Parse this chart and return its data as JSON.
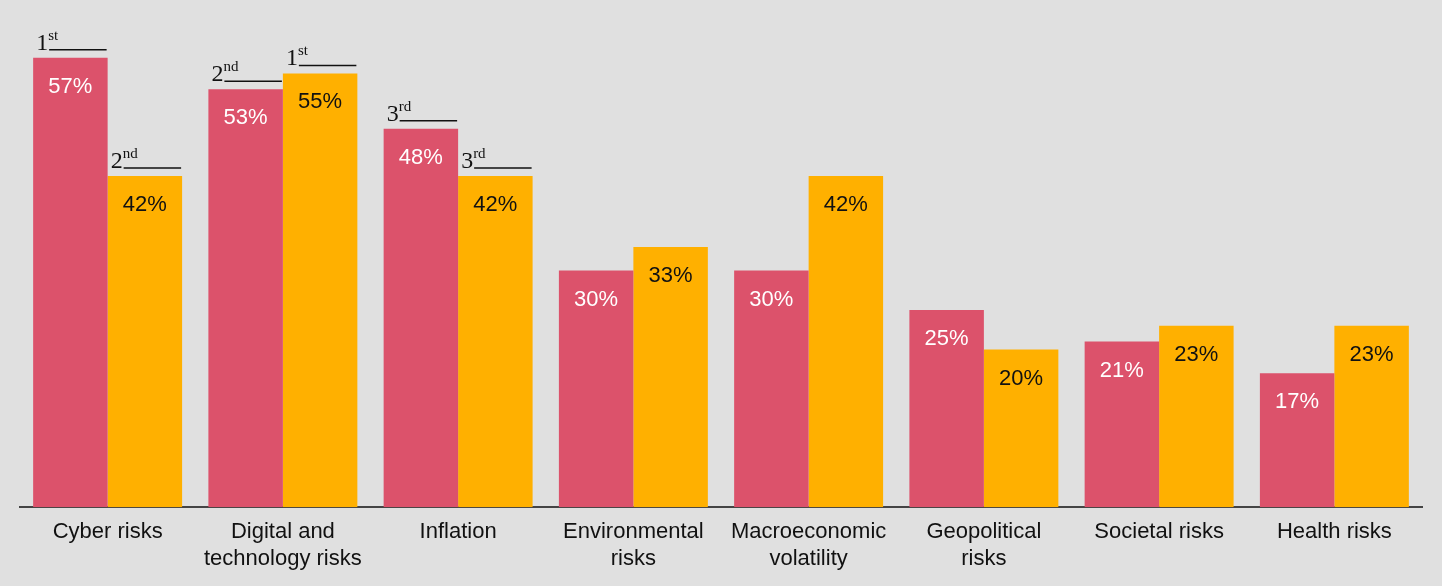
{
  "chart_data": {
    "type": "bar",
    "categories": [
      "Cyber risks",
      "Digital and technology risks",
      "Inflation",
      "Environmental risks",
      "Macroeconomic volatility",
      "Geopolitical risks",
      "Societal risks",
      "Health risks"
    ],
    "series": [
      {
        "color": "#dc526b",
        "values": [
          57,
          53,
          48,
          30,
          30,
          25,
          21,
          17
        ],
        "value_labels": [
          "57%",
          "53%",
          "48%",
          "30%",
          "30%",
          "25%",
          "21%",
          "17%"
        ]
      },
      {
        "color": "#ffb000",
        "values": [
          42,
          55,
          42,
          33,
          42,
          20,
          23,
          23
        ],
        "value_labels": [
          "42%",
          "55%",
          "42%",
          "33%",
          "42%",
          "20%",
          "23%",
          "23%"
        ]
      }
    ],
    "legend": false,
    "grid": false,
    "annotations": [
      {
        "text": "1$^{st}$",
        "x": "Cyber risks",
        "y": 57
      },
      {
        "text": "2$^{nd}$",
        "x": "Cyber risks",
        "y": 42
      },
      {
        "text": "2$^{nd}$",
        "x": "Digital and technology risks",
        "y": 53
      },
      {
        "text": "1$^{st}$",
        "x": "Digital and technology risks",
        "y": 55
      },
      {
        "text": "3$^{rd}$",
        "x": "Inflation",
        "y": 48
      },
      {
        "text": "3$^{rd}$",
        "x": "Inflation",
        "y": 42
      }
    ]
  }
}
